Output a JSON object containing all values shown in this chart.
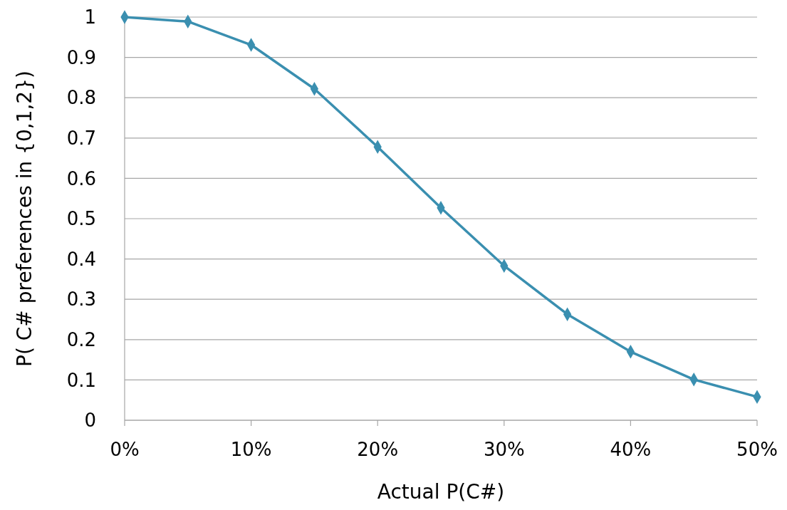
{
  "chart_data": {
    "type": "line",
    "xlabel": "Actual P(C#)",
    "ylabel": "P( C# preferences in {0,1,2})",
    "x": [
      0,
      5,
      10,
      15,
      20,
      25,
      30,
      35,
      40,
      45,
      50
    ],
    "series": [
      {
        "color": "#3a8fb0",
        "values": [
          1.0,
          0.989,
          0.931,
          0.822,
          0.678,
          0.527,
          0.383,
          0.263,
          0.17,
          0.101,
          0.058
        ]
      }
    ],
    "xlim": [
      0,
      50
    ],
    "xticks": [
      {
        "value": 0,
        "label": "0%"
      },
      {
        "value": 10,
        "label": "10%"
      },
      {
        "value": 20,
        "label": "20%"
      },
      {
        "value": 30,
        "label": "30%"
      },
      {
        "value": 40,
        "label": "40%"
      },
      {
        "value": 50,
        "label": "50%"
      }
    ],
    "ylim": [
      0,
      1
    ],
    "yticks": [
      0,
      0.1,
      0.2,
      0.3,
      0.4,
      0.5,
      0.6,
      0.7,
      0.8,
      0.9,
      1
    ],
    "grid": "y",
    "marker": "diamond",
    "line_style": "solid"
  }
}
